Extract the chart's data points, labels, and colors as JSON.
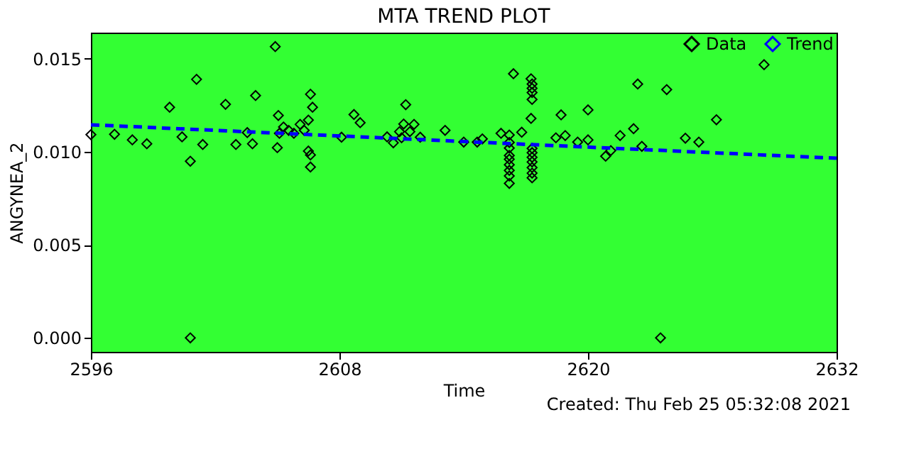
{
  "chart_data": {
    "type": "scatter",
    "title": "MTA TREND PLOT",
    "xlabel": "Time",
    "ylabel": "ANGYNEA_2",
    "annotations": [
      "Created: Thu Feb 25 05:32:08 2021"
    ],
    "xlim": [
      2596,
      2632
    ],
    "xticks": [
      2596,
      2608,
      2620,
      2632
    ],
    "ylim": [
      -0.00075,
      0.0164
    ],
    "yticks": [
      {
        "value": 0,
        "label": "0.000"
      },
      {
        "value": 0.005,
        "label": "0.005"
      },
      {
        "value": 0.01,
        "label": "0.010"
      },
      {
        "value": 0.015,
        "label": "0.015"
      }
    ],
    "grid": false,
    "legend": "top right",
    "series": [
      {
        "name": "Data",
        "type": "scatter",
        "marker": "diamond",
        "color": "#000000",
        "x": [
          2596.0,
          2597.14,
          2598.0,
          2598.7,
          2599.8,
          2600.4,
          2600.8,
          2600.8,
          2601.1,
          2601.4,
          2602.5,
          2603.0,
          2603.55,
          2603.8,
          2603.95,
          2604.9,
          2605.0,
          2605.05,
          2605.1,
          2605.3,
          2605.55,
          2605.8,
          2606.1,
          2606.3,
          2606.5,
          2606.6,
          2606.5,
          2606.6,
          2606.6,
          2606.7,
          2608.1,
          2608.7,
          2609.0,
          2610.3,
          2610.6,
          2610.9,
          2611.0,
          2611.1,
          2611.2,
          2611.4,
          2611.6,
          2611.9,
          2613.1,
          2614.0,
          2614.65,
          2614.9,
          2615.8,
          2616.4,
          2616.2,
          2616.2,
          2616.2,
          2616.2,
          2616.2,
          2616.2,
          2616.2,
          2616.2,
          2616.2,
          2616.8,
          2617.25,
          2617.25,
          2617.3,
          2617.3,
          2617.3,
          2617.3,
          2617.3,
          2617.3,
          2617.3,
          2617.3,
          2617.3,
          2617.3,
          2617.3,
          2618.45,
          2618.7,
          2618.9,
          2619.5,
          2620.0,
          2620.0,
          2620.85,
          2621.1,
          2621.55,
          2622.2,
          2622.4,
          2622.6,
          2623.5,
          2623.8,
          2624.7,
          2625.35,
          2626.2,
          2628.5
        ],
        "values": [
          0.01092,
          0.01094,
          0.01064,
          0.01043,
          0.01239,
          0.0108,
          0.00949,
          0.0,
          0.01389,
          0.01039,
          0.01255,
          0.01039,
          0.01103,
          0.01043,
          0.01302,
          0.01565,
          0.01022,
          0.01195,
          0.01099,
          0.01133,
          0.01115,
          0.01099,
          0.01147,
          0.01115,
          0.0117,
          0.01309,
          0.01004,
          0.00983,
          0.00918,
          0.01239,
          0.01078,
          0.012,
          0.01156,
          0.0108,
          0.01048,
          0.01108,
          0.01075,
          0.01149,
          0.01253,
          0.01108,
          0.01147,
          0.01078,
          0.01115,
          0.01052,
          0.01052,
          0.01069,
          0.01099,
          0.01419,
          0.0109,
          0.0105,
          0.0102,
          0.0098,
          0.0096,
          0.0093,
          0.009,
          0.0087,
          0.0083,
          0.01105,
          0.01392,
          0.01179,
          0.01364,
          0.01341,
          0.01318,
          0.01281,
          0.01018,
          0.00995,
          0.0097,
          0.00945,
          0.00915,
          0.00885,
          0.0086,
          0.01075,
          0.01198,
          0.01087,
          0.01052,
          0.01225,
          0.01064,
          0.00976,
          0.01006,
          0.01087,
          0.01124,
          0.01364,
          0.01029,
          0.0,
          0.01334,
          0.01073,
          0.01052,
          0.01172,
          0.01468
        ]
      },
      {
        "name": "Trend",
        "type": "line",
        "line_style": "dashed",
        "color": "#0000ff",
        "x": [
          2596,
          2632
        ],
        "values": [
          0.01145,
          0.00965
        ]
      }
    ]
  }
}
